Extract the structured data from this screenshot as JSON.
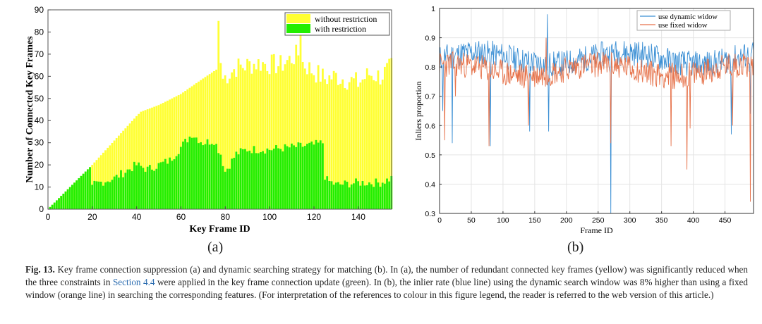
{
  "chart_data": [
    {
      "panel": "(a)",
      "type": "bar",
      "stacked": "overlay",
      "xlabel": "Key Frame ID",
      "ylabel": "Number of  Connected Key Frames",
      "xlim": [
        0,
        155
      ],
      "ylim": [
        0,
        90
      ],
      "xticks": [
        0,
        20,
        40,
        60,
        80,
        100,
        120,
        140
      ],
      "yticks": [
        0,
        10,
        20,
        30,
        40,
        50,
        60,
        70,
        80,
        90
      ],
      "legend_position": "top-right",
      "grid": false,
      "series": [
        {
          "name": "without restriction",
          "color": "#ffff33",
          "keypoints_x": [
            0,
            19,
            20,
            40,
            42,
            50,
            60,
            70,
            76,
            77,
            78,
            79,
            85,
            95,
            105,
            113,
            114,
            115,
            120,
            125,
            130,
            140,
            145,
            150,
            155
          ],
          "keypoints_y": [
            0,
            19,
            20,
            42,
            44,
            47,
            52,
            59,
            63,
            85,
            66,
            59,
            64,
            66,
            65,
            70,
            82,
            66,
            62,
            59,
            60,
            57,
            61,
            60,
            64
          ]
        },
        {
          "name": "with restriction",
          "color": "#22ee00",
          "keypoints_x": [
            0,
            19,
            20,
            30,
            40,
            45,
            50,
            55,
            60,
            65,
            70,
            75,
            78,
            80,
            85,
            90,
            100,
            110,
            120,
            124,
            125,
            126,
            130,
            140,
            150,
            155
          ],
          "keypoints_y": [
            0,
            19,
            11,
            14,
            20,
            18,
            20,
            22,
            28,
            34,
            30,
            31,
            25,
            17,
            25,
            27,
            27,
            28,
            29,
            30,
            15,
            13,
            11,
            12,
            12,
            14
          ]
        }
      ]
    },
    {
      "panel": "(b)",
      "type": "line",
      "xlabel": "Frame ID",
      "ylabel": "Inliers proportion",
      "xlim": [
        0,
        495
      ],
      "ylim": [
        0.3,
        1
      ],
      "xticks": [
        0,
        50,
        100,
        150,
        200,
        250,
        300,
        350,
        400,
        450
      ],
      "yticks": [
        0.3,
        0.4,
        0.5,
        0.6,
        0.7,
        0.8,
        0.9,
        1
      ],
      "ytick_labels": [
        "0.3",
        "0.4",
        "0.5",
        "0.6",
        "0.7",
        "0.8",
        "0.9",
        "1"
      ],
      "legend_position": "top-right",
      "grid": true,
      "series": [
        {
          "name": "use dynamic widow",
          "color": "#3b8fd4",
          "baseline": 0.83,
          "noise": 0.045,
          "dips": [
            [
              5,
              0.65
            ],
            [
              20,
              0.54
            ],
            [
              80,
              0.53
            ],
            [
              142,
              0.58
            ],
            [
              170,
              0.98
            ],
            [
              172,
              0.58
            ],
            [
              270,
              0.28
            ],
            [
              460,
              0.57
            ],
            [
              490,
              0.64
            ]
          ]
        },
        {
          "name": "use fixed widow",
          "color": "#e6724a",
          "baseline": 0.79,
          "noise": 0.045,
          "dips": [
            [
              8,
              0.55
            ],
            [
              25,
              0.7
            ],
            [
              78,
              0.53
            ],
            [
              140,
              0.6
            ],
            [
              168,
              0.9
            ],
            [
              270,
              0.54
            ],
            [
              365,
              0.53
            ],
            [
              390,
              0.45
            ],
            [
              395,
              0.59
            ],
            [
              462,
              0.6
            ],
            [
              490,
              0.34
            ]
          ]
        }
      ]
    }
  ],
  "panel_labels": {
    "a": "(a)",
    "b": "(b)"
  },
  "caption": {
    "fig_label": "Fig. 13.",
    "text_1": " Key frame connection suppression (a) and dynamic searching strategy for matching (b). In (a), the number of redundant connected key frames (yellow) was significantly reduced when the three constraints in ",
    "link": "Section 4.4",
    "text_2": " were applied in the key frame connection update (green). In (b), the inlier rate (blue line) using the dynamic search window was 8% higher than using a fixed window (orange line) in searching the corresponding features. (For interpretation of the references to colour in this figure legend, the reader is referred to the web version of this article.)"
  }
}
